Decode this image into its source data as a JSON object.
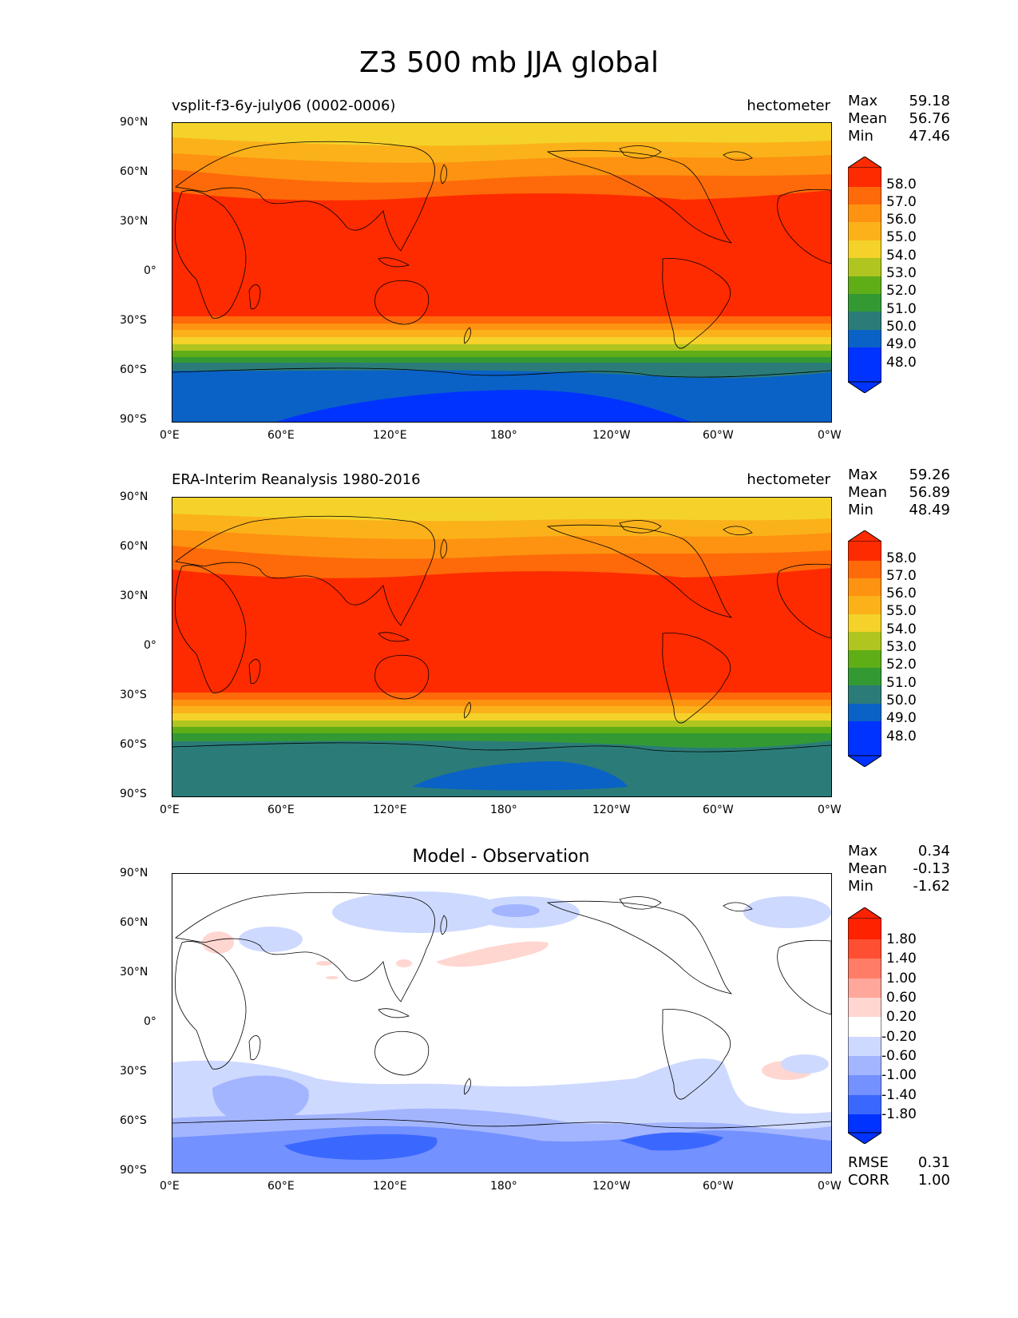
{
  "figure": {
    "title": "Z3 500 mb JJA global"
  },
  "axes": {
    "lat_ticks": [
      "90°N",
      "60°N",
      "30°N",
      "0°",
      "30°S",
      "60°S",
      "90°S"
    ],
    "lon_ticks": [
      "0°E",
      "60°E",
      "120°E",
      "180°",
      "120°W",
      "60°W",
      "0°W"
    ]
  },
  "colors": {
    "abs": [
      "#0033ff",
      "#0a62c6",
      "#2b7c78",
      "#339a33",
      "#5fae17",
      "#b0c520",
      "#f4d22a",
      "#fbb21a",
      "#fd9310",
      "#fe6a09",
      "#ff2b00"
    ],
    "diff": [
      "#0033ff",
      "#3a68ff",
      "#7391ff",
      "#a3b5ff",
      "#ced9ff",
      "#ffffff",
      "#ffd6d0",
      "#ffa79a",
      "#ff7d66",
      "#ff4f33",
      "#ff2200"
    ]
  },
  "panels": [
    {
      "left_title": "vsplit-f3-6y-july06 (0002-0006)",
      "right_title": "hectometer",
      "stats": {
        "max_label": "Max",
        "max": "59.18",
        "mean_label": "Mean",
        "mean": "56.76",
        "min_label": "Min",
        "min": "47.46"
      },
      "colorbar_labels": [
        "58.0",
        "57.0",
        "56.0",
        "55.0",
        "54.0",
        "53.0",
        "52.0",
        "51.0",
        "50.0",
        "49.0",
        "48.0"
      ]
    },
    {
      "left_title": "ERA-Interim Reanalysis 1980-2016",
      "right_title": "hectometer",
      "stats": {
        "max_label": "Max",
        "max": "59.26",
        "mean_label": "Mean",
        "mean": "56.89",
        "min_label": "Min",
        "min": "48.49"
      },
      "colorbar_labels": [
        "58.0",
        "57.0",
        "56.0",
        "55.0",
        "54.0",
        "53.0",
        "52.0",
        "51.0",
        "50.0",
        "49.0",
        "48.0"
      ]
    },
    {
      "center_title": "Model - Observation",
      "stats": {
        "max_label": "Max",
        "max": "0.34",
        "mean_label": "Mean",
        "mean": "-0.13",
        "min_label": "Min",
        "min": "-1.62"
      },
      "colorbar_labels": [
        "1.80",
        "1.40",
        "1.00",
        "0.60",
        "0.20",
        "-0.20",
        "-0.60",
        "-1.00",
        "-1.40",
        "-1.80"
      ],
      "metrics": {
        "rmse_label": "RMSE",
        "rmse": "0.31",
        "corr_label": "CORR",
        "corr": "1.00"
      }
    }
  ],
  "chart_data": [
    {
      "type": "heatmap",
      "title": "vsplit-f3-6y-july06 (0002-0006)",
      "units": "hectometer",
      "xlim": [
        0,
        360
      ],
      "ylim": [
        -90,
        90
      ],
      "levels": [
        48.0,
        49.0,
        50.0,
        51.0,
        52.0,
        53.0,
        54.0,
        55.0,
        56.0,
        57.0,
        58.0
      ],
      "zonal_profile": [
        [
          90,
          54.3
        ],
        [
          75,
          54.8
        ],
        [
          60,
          55.6
        ],
        [
          50,
          56.6
        ],
        [
          40,
          58.2
        ],
        [
          30,
          58.6
        ],
        [
          0,
          58.8
        ],
        [
          -20,
          58.4
        ],
        [
          -25,
          57.6
        ],
        [
          -30,
          56.4
        ],
        [
          -40,
          54.5
        ],
        [
          -50,
          52.3
        ],
        [
          -58,
          50.2
        ],
        [
          -64,
          49.0
        ],
        [
          -70,
          48.3
        ],
        [
          -80,
          48.1
        ],
        [
          -90,
          47.8
        ]
      ],
      "stats": {
        "max": 59.18,
        "mean": 56.76,
        "min": 47.46
      }
    },
    {
      "type": "heatmap",
      "title": "ERA-Interim Reanalysis 1980-2016",
      "units": "hectometer",
      "xlim": [
        0,
        360
      ],
      "ylim": [
        -90,
        90
      ],
      "levels": [
        48.0,
        49.0,
        50.0,
        51.0,
        52.0,
        53.0,
        54.0,
        55.0,
        56.0,
        57.0,
        58.0
      ],
      "zonal_profile": [
        [
          90,
          54.4
        ],
        [
          75,
          55.0
        ],
        [
          60,
          55.9
        ],
        [
          50,
          56.9
        ],
        [
          40,
          58.2
        ],
        [
          30,
          58.6
        ],
        [
          0,
          58.8
        ],
        [
          -20,
          58.4
        ],
        [
          -25,
          57.6
        ],
        [
          -30,
          56.5
        ],
        [
          -40,
          54.8
        ],
        [
          -50,
          52.6
        ],
        [
          -58,
          50.6
        ],
        [
          -64,
          49.5
        ],
        [
          -70,
          49.1
        ],
        [
          -80,
          49.0
        ],
        [
          -90,
          49.0
        ]
      ],
      "stats": {
        "max": 59.26,
        "mean": 56.89,
        "min": 48.49
      }
    },
    {
      "type": "heatmap",
      "title": "Model - Observation",
      "xlim": [
        0,
        360
      ],
      "ylim": [
        -90,
        90
      ],
      "levels": [
        -1.8,
        -1.4,
        -1.0,
        -0.6,
        -0.2,
        0.2,
        0.6,
        1.0,
        1.4,
        1.8
      ],
      "zonal_profile": [
        [
          90,
          0.0
        ],
        [
          70,
          -0.25
        ],
        [
          50,
          0.0
        ],
        [
          30,
          0.0
        ],
        [
          0,
          0.0
        ],
        [
          -30,
          -0.3
        ],
        [
          -45,
          -0.5
        ],
        [
          -55,
          -0.7
        ],
        [
          -65,
          -1.0
        ],
        [
          -75,
          -1.2
        ],
        [
          -90,
          -1.0
        ]
      ],
      "stats": {
        "max": 0.34,
        "mean": -0.13,
        "min": -1.62,
        "rmse": 0.31,
        "corr": 1.0
      }
    }
  ]
}
